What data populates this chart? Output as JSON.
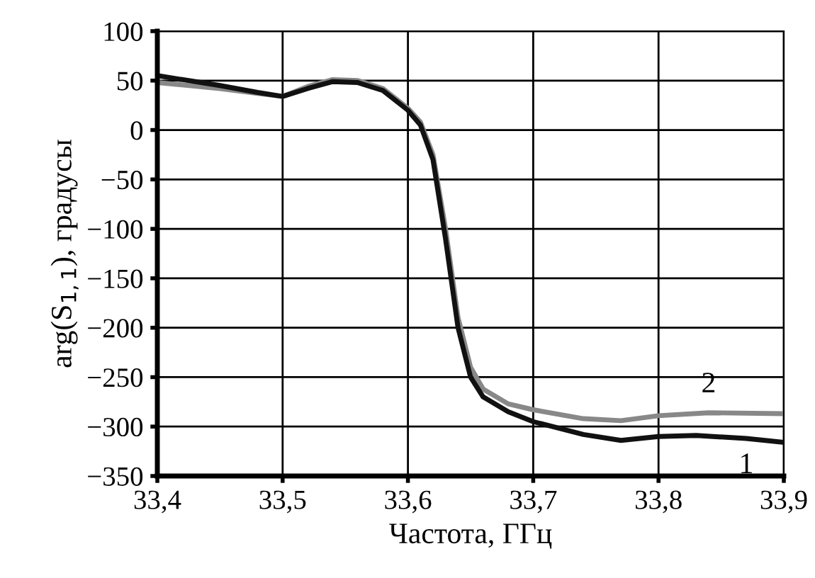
{
  "chart_data": {
    "type": "line",
    "xlabel": "Частота, ГГц",
    "ylabel": "arg(S$_{1,1}$), градусы",
    "xlim": [
      33.4,
      33.9
    ],
    "ylim": [
      -350,
      100
    ],
    "xticks": [
      {
        "value": 33.4,
        "label": "33,4"
      },
      {
        "value": 33.5,
        "label": "33,5"
      },
      {
        "value": 33.6,
        "label": "33,6"
      },
      {
        "value": 33.7,
        "label": "33,7"
      },
      {
        "value": 33.8,
        "label": "33,8"
      },
      {
        "value": 33.9,
        "label": "33,9"
      }
    ],
    "yticks": [
      {
        "value": -350,
        "label": "−350"
      },
      {
        "value": -300,
        "label": "−300"
      },
      {
        "value": -250,
        "label": "−250"
      },
      {
        "value": -200,
        "label": "−200"
      },
      {
        "value": -150,
        "label": "−150"
      },
      {
        "value": -100,
        "label": "−100"
      },
      {
        "value": -50,
        "label": "−50"
      },
      0,
      50,
      100
    ],
    "grid": true,
    "marker": "none",
    "line_style": "solid",
    "series": [
      {
        "name": "2",
        "color": "#888888",
        "x": [
          33.4,
          33.45,
          33.48,
          33.5,
          33.52,
          33.54,
          33.56,
          33.58,
          33.6,
          33.61,
          33.62,
          33.63,
          33.64,
          33.65,
          33.66,
          33.68,
          33.7,
          33.74,
          33.77,
          33.8,
          33.84,
          33.9
        ],
        "values": [
          48,
          42,
          37,
          34,
          44,
          51,
          50,
          42,
          22,
          8,
          -25,
          -100,
          -190,
          -240,
          -262,
          -277,
          -283,
          -292,
          -294,
          -289,
          -286,
          -287
        ]
      },
      {
        "name": "1",
        "color": "#111111",
        "x": [
          33.4,
          33.45,
          33.48,
          33.5,
          33.52,
          33.54,
          33.56,
          33.58,
          33.6,
          33.61,
          33.62,
          33.63,
          33.64,
          33.65,
          33.66,
          33.68,
          33.7,
          33.74,
          33.77,
          33.8,
          33.83,
          33.87,
          33.9
        ],
        "values": [
          55,
          45,
          38,
          34,
          42,
          49,
          48,
          40,
          20,
          5,
          -30,
          -110,
          -200,
          -250,
          -270,
          -285,
          -295,
          -308,
          -314,
          -310,
          -309,
          -312,
          -316
        ]
      }
    ]
  }
}
